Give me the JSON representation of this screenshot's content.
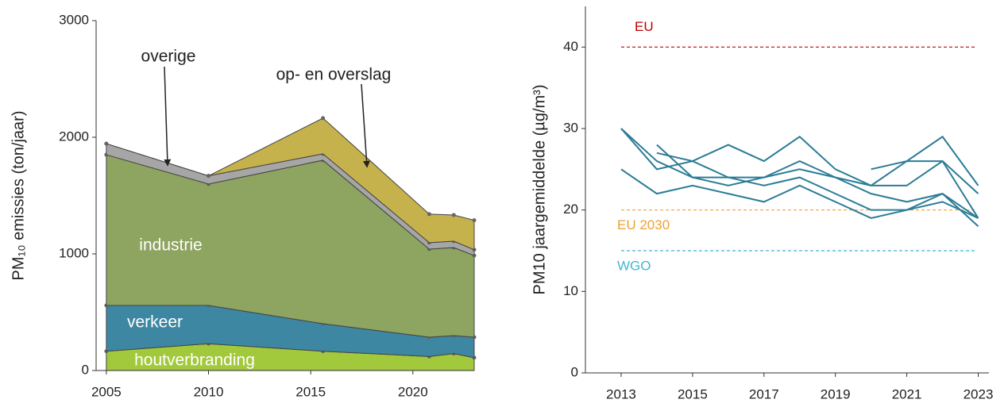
{
  "chart_data": [
    {
      "type": "stacked_area",
      "y_label": "PM₁₀ emissies (ton/jaar)",
      "x": [
        2005,
        2010,
        2015.6,
        2020.8,
        2022,
        2023
      ],
      "xlim": [
        2004.5,
        2023
      ],
      "xticks": [
        2005,
        2010,
        2015,
        2020
      ],
      "ylim": [
        0,
        3000
      ],
      "yticks": [
        0,
        1000,
        2000,
        3000
      ],
      "series": [
        {
          "name": "houtverbranding",
          "color": "#a2c83c",
          "values": [
            165,
            230,
            165,
            120,
            145,
            110
          ]
        },
        {
          "name": "verkeer",
          "color": "#3d87a2",
          "values": [
            393,
            328,
            236,
            166,
            154,
            176
          ]
        },
        {
          "name": "industrie",
          "color": "#8ea461",
          "values": [
            1292,
            1041,
            1402,
            755,
            755,
            700
          ]
        },
        {
          "name": "overige",
          "color": "#a6a6a6",
          "values": [
            95,
            70,
            55,
            55,
            55,
            50
          ]
        },
        {
          "name": "op- en overslag",
          "color": "#c6b24c",
          "values": [
            0,
            0,
            306,
            245,
            224,
            252
          ]
        }
      ]
    },
    {
      "type": "line",
      "y_label": "PM10 jaargemiddelde (µg/m³)",
      "x": [
        2013,
        2014,
        2015,
        2016,
        2017,
        2018,
        2019,
        2020,
        2021,
        2022,
        2023
      ],
      "xlim": [
        2012,
        2023.3
      ],
      "xticks": [
        2013,
        2015,
        2017,
        2019,
        2021,
        2023
      ],
      "ylim": [
        0,
        45
      ],
      "yticks": [
        0,
        10,
        20,
        30,
        40
      ],
      "color": "#2b7c97",
      "series": [
        {
          "values": [
            30,
            26,
            24,
            24,
            24,
            25,
            24,
            23,
            26,
            26,
            19
          ]
        },
        {
          "values": [
            30,
            25,
            26,
            28,
            26,
            29,
            25,
            23,
            23,
            26,
            22
          ]
        },
        {
          "values": [
            25,
            22,
            23,
            22,
            21,
            23,
            21,
            19,
            20,
            22,
            18
          ]
        },
        {
          "values": [
            null,
            28,
            24,
            23,
            24,
            26,
            24,
            22,
            21,
            22,
            19
          ]
        },
        {
          "values": [
            null,
            27,
            26,
            24,
            23,
            24,
            22,
            20,
            20,
            21,
            19
          ]
        },
        {
          "values": [
            null,
            null,
            null,
            null,
            null,
            null,
            null,
            25,
            26,
            29,
            23
          ]
        }
      ],
      "reference_lines": [
        {
          "label": "EU",
          "value": 40,
          "color": "#c00000"
        },
        {
          "label": "EU 2030",
          "value": 20,
          "color": "#f0a030"
        },
        {
          "label": "WGO",
          "value": 15,
          "color": "#3fb8cf"
        }
      ]
    }
  ]
}
